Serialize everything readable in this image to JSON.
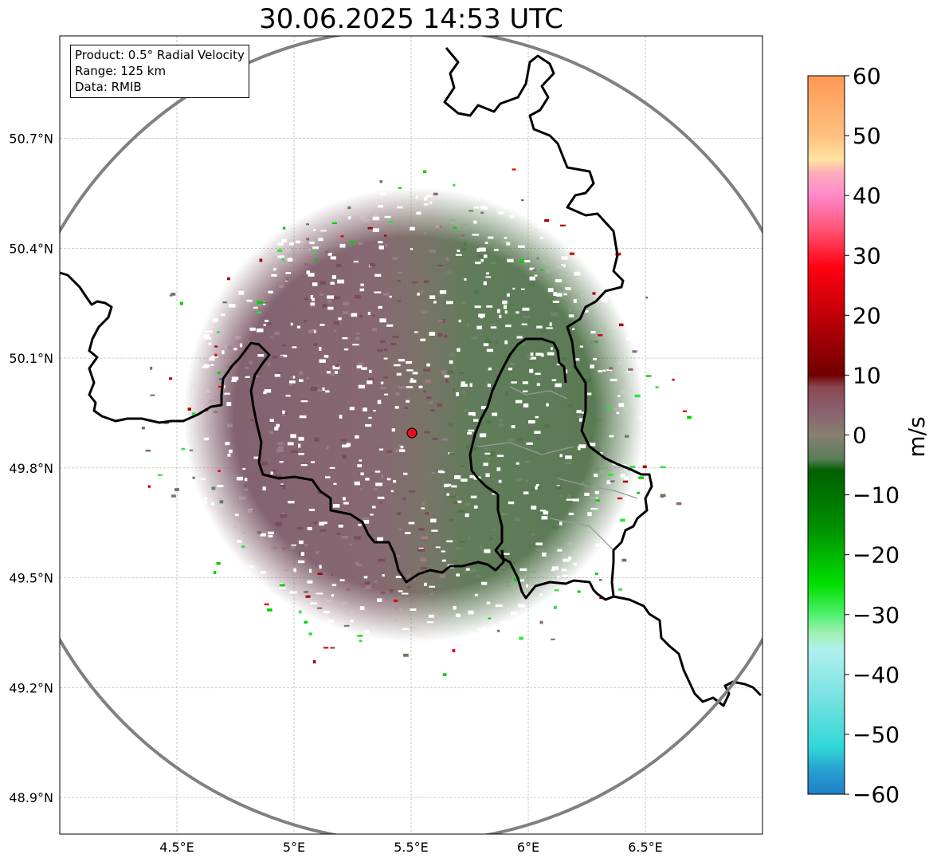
{
  "title": "30.06.2025 14:53 UTC",
  "info": {
    "product": "Product: 0.5° Radial Velocity",
    "range": "Range: 125 km",
    "source": "Data: RMIB"
  },
  "map": {
    "lon_range": [
      4.0,
      7.0
    ],
    "lat_range": [
      48.8,
      50.98
    ],
    "radar_site": {
      "lon": 5.505,
      "lat": 49.915
    },
    "range_ring_color": "#808080",
    "border_color": "#000000",
    "gridlines": true
  },
  "axes": {
    "x_ticks": [
      4.5,
      5.0,
      5.5,
      6.0,
      6.5
    ],
    "x_tick_labels": [
      "4.5°E",
      "5°E",
      "5.5°E",
      "6°E",
      "6.5°E"
    ],
    "y_ticks": [
      50.7,
      50.4,
      50.1,
      49.8,
      49.5,
      49.2,
      48.9
    ],
    "y_tick_labels": [
      "50.7°N",
      "50.4°N",
      "50.1°N",
      "49.8°N",
      "49.5°N",
      "49.2°N",
      "48.9°N"
    ]
  },
  "colorbar": {
    "unit": "m/s",
    "range": [
      -60,
      60
    ],
    "ticks": [
      60,
      50,
      40,
      30,
      20,
      10,
      0,
      -10,
      -20,
      -30,
      -40,
      -50,
      -60
    ],
    "tick_labels": [
      "60",
      "50",
      "40",
      "30",
      "20",
      "10",
      "0",
      "−10",
      "−20",
      "−30",
      "−40",
      "−50",
      "−60"
    ],
    "color_stops": [
      {
        "value": 60,
        "color": "#ff9955"
      },
      {
        "value": 50,
        "color": "#ffc080"
      },
      {
        "value": 46,
        "color": "#ffe4a0"
      },
      {
        "value": 44,
        "color": "#ffb0b8"
      },
      {
        "value": 40,
        "color": "#ff88cc"
      },
      {
        "value": 34,
        "color": "#ff5070"
      },
      {
        "value": 28,
        "color": "#ff0010"
      },
      {
        "value": 20,
        "color": "#c00008"
      },
      {
        "value": 10,
        "color": "#700000"
      },
      {
        "value": 8,
        "color": "#8a4850"
      },
      {
        "value": 4,
        "color": "#8a6070"
      },
      {
        "value": 0,
        "color": "#888070"
      },
      {
        "value": -4,
        "color": "#5a7d58"
      },
      {
        "value": -6,
        "color": "#006000"
      },
      {
        "value": -15,
        "color": "#008c00"
      },
      {
        "value": -25,
        "color": "#00e000"
      },
      {
        "value": -30,
        "color": "#50f070"
      },
      {
        "value": -33,
        "color": "#a0f0b0"
      },
      {
        "value": -36,
        "color": "#b0f0f0"
      },
      {
        "value": -45,
        "color": "#70e0e0"
      },
      {
        "value": -52,
        "color": "#30d8d8"
      },
      {
        "value": -56,
        "color": "#28a0d0"
      },
      {
        "value": -60,
        "color": "#2080c8"
      }
    ]
  }
}
